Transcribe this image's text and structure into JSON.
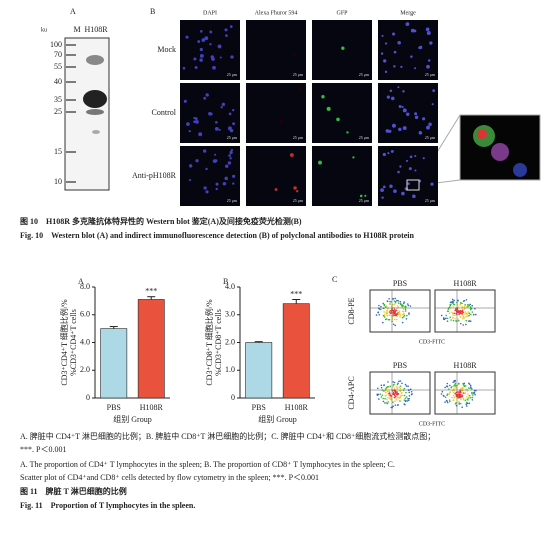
{
  "figure10": {
    "panel_a": {
      "label": "A",
      "unit": "ku",
      "lanes": [
        "M",
        "H108R"
      ],
      "markers": [
        "100",
        "70",
        "55",
        "40",
        "35",
        "25",
        "15",
        "10"
      ]
    },
    "panel_b": {
      "label": "B",
      "columns": [
        "DAPI",
        "Alexa Fhuror 594",
        "GFP",
        "Merge"
      ],
      "rows": [
        "Mock",
        "Control",
        "Anti-pH108R"
      ],
      "scale_bar": "25 μm"
    },
    "caption_cn": "图 10　H108R 多克隆抗体特异性的 Western blot 鉴定(A)及间接免疫荧光检测(B)",
    "caption_en": "Fig. 10　Western blot (A) and indirect immunofluorescence detection (B) of polyclonal antibodies to H108R protein"
  },
  "figure11": {
    "charts": [
      {
        "type": "bar",
        "label": "A",
        "ylabel": [
          "CD3⁺CD4⁺T 细胞比例/%",
          "%CD3⁺CD4⁺T cells"
        ],
        "xlabel": "组别 Group",
        "categories": [
          "PBS",
          "H108R"
        ],
        "values": [
          5.0,
          7.1
        ],
        "errors": [
          0.15,
          0.2
        ],
        "colors": [
          "#add8e6",
          "#e9533d"
        ],
        "annotation": "***",
        "ylim": [
          0,
          8
        ],
        "yticks": [
          0,
          {
            "value": 2,
            "label": "2.0"
          },
          {
            "value": 4,
            "label": "4.0"
          },
          {
            "value": 6,
            "label": "6.0"
          },
          {
            "value": 8,
            "label": "8.0"
          }
        ]
      },
      {
        "type": "bar",
        "label": "B",
        "ylabel": [
          "CD3⁺CD8⁺T 细胞比例/%",
          "%CD3⁺CD8⁺T cells"
        ],
        "xlabel": "组别 Group",
        "categories": [
          "PBS",
          "H108R"
        ],
        "values": [
          2.0,
          3.4
        ],
        "errors": [
          0.03,
          0.15
        ],
        "colors": [
          "#add8e6",
          "#e9533d"
        ],
        "annotation": "***",
        "ylim": [
          0,
          4
        ],
        "yticks": [
          0,
          {
            "value": 1,
            "label": "1.0"
          },
          {
            "value": 2,
            "label": "2.0"
          },
          {
            "value": 3,
            "label": "3.0"
          },
          {
            "value": 4,
            "label": "4.0"
          }
        ]
      }
    ],
    "panel_c": {
      "label": "C",
      "columns": [
        "PBS",
        "H108R"
      ],
      "top_ylabel": "CD8-PE",
      "top_xlabel": "CD3-FITC",
      "bottom_ylabel": "CD4-APC",
      "bottom_xlabel": "CD3-FITC"
    },
    "legend_lines": [
      "A. 脾脏中 CD4⁺T 淋巴细胞的比例；B. 脾脏中 CD8⁺T 淋巴细胞的比例；C. 脾脏中 CD4⁺和 CD8⁺细胞流式检测散点图；",
      "***. P＜0.001",
      "A. The proportion of CD4⁺ T lymphocytes in the spleen; B. The proportion of CD8⁺ T lymphocytes in the spleen; C.",
      "Scatter plot of CD4⁺and CD8⁺ cells detected by flow cytometry in the spleen; ***. P＜0.001"
    ],
    "caption_cn": "图 11　脾脏 T 淋巴细胞的比例",
    "caption_en": "Fig. 11　Proportion of T lymphocytes in the spleen."
  }
}
